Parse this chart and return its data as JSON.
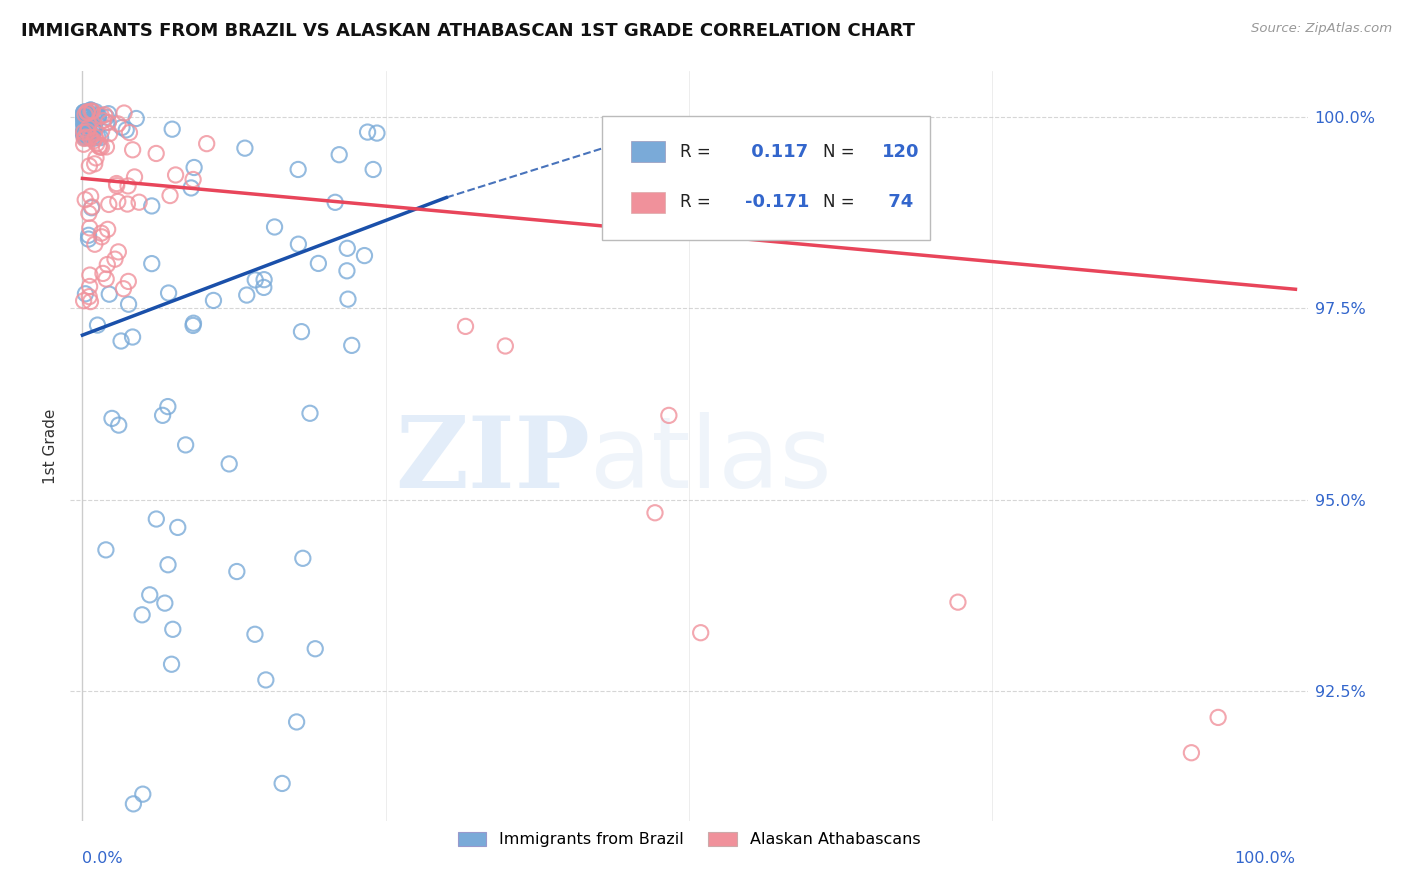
{
  "title": "IMMIGRANTS FROM BRAZIL VS ALASKAN ATHABASCAN 1ST GRADE CORRELATION CHART",
  "source": "Source: ZipAtlas.com",
  "ylabel": "1st Grade",
  "legend_label1": "Immigrants from Brazil",
  "legend_label2": "Alaskan Athabascans",
  "R1": 0.117,
  "N1": 120,
  "R2": -0.171,
  "N2": 74,
  "color1": "#7aaad8",
  "color2": "#f0919b",
  "trend1_color": "#1a50aa",
  "trend2_color": "#e8455a",
  "ytick_labels": [
    "92.5%",
    "95.0%",
    "97.5%",
    "100.0%"
  ],
  "ytick_values": [
    0.925,
    0.95,
    0.975,
    1.0
  ],
  "ymin": 0.908,
  "ymax": 1.006,
  "xmin": -0.01,
  "xmax": 1.01,
  "watermark_zip": "ZIP",
  "watermark_atlas": "atlas",
  "background_color": "#ffffff",
  "grid_color": "#cccccc",
  "right_label_color": "#3366cc",
  "bottom_label_color": "#3366cc"
}
